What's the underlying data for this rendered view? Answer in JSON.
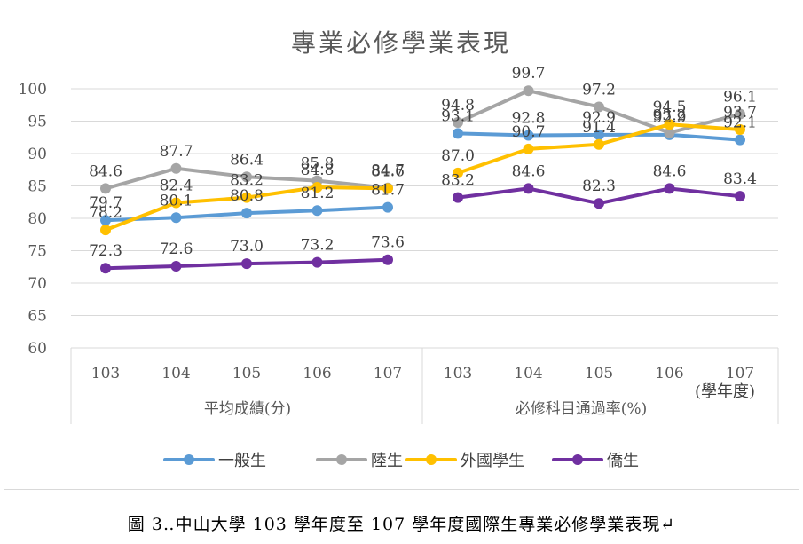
{
  "chart_data": {
    "type": "line",
    "title": "專業必修學業表現",
    "ylim": [
      60,
      100
    ],
    "y_ticks": [
      60,
      65,
      70,
      75,
      80,
      85,
      90,
      95,
      100
    ],
    "grid": true,
    "legend_position": "bottom",
    "x_unit_label": "(學年度)",
    "groups": [
      {
        "label": "平均成績(分)",
        "categories": [
          "103",
          "104",
          "105",
          "106",
          "107"
        ]
      },
      {
        "label": "必修科目通過率(%)",
        "categories": [
          "103",
          "104",
          "105",
          "106",
          "107"
        ]
      }
    ],
    "series": [
      {
        "name": "一般生",
        "color": "#5b9bd5",
        "groups": [
          [
            79.7,
            80.1,
            80.8,
            81.2,
            81.7
          ],
          [
            93.1,
            92.8,
            92.9,
            92.9,
            92.1
          ]
        ]
      },
      {
        "name": "陸生",
        "color": "#a5a5a5",
        "groups": [
          [
            84.6,
            87.7,
            86.4,
            85.8,
            84.7
          ],
          [
            94.8,
            99.7,
            97.2,
            93.2,
            96.1
          ]
        ]
      },
      {
        "name": "外國學生",
        "color": "#ffc000",
        "groups": [
          [
            78.2,
            82.4,
            83.2,
            84.8,
            84.6
          ],
          [
            87.0,
            90.7,
            91.4,
            94.5,
            93.7
          ]
        ]
      },
      {
        "name": "僑生",
        "color": "#7030a0",
        "groups": [
          [
            72.3,
            72.6,
            73.0,
            73.2,
            73.6
          ],
          [
            83.2,
            84.6,
            82.3,
            84.6,
            83.4
          ]
        ]
      }
    ]
  },
  "caption": "圖 3‥中山大學 103 學年度至 107 學年度國際生專業必修學業表現↵"
}
